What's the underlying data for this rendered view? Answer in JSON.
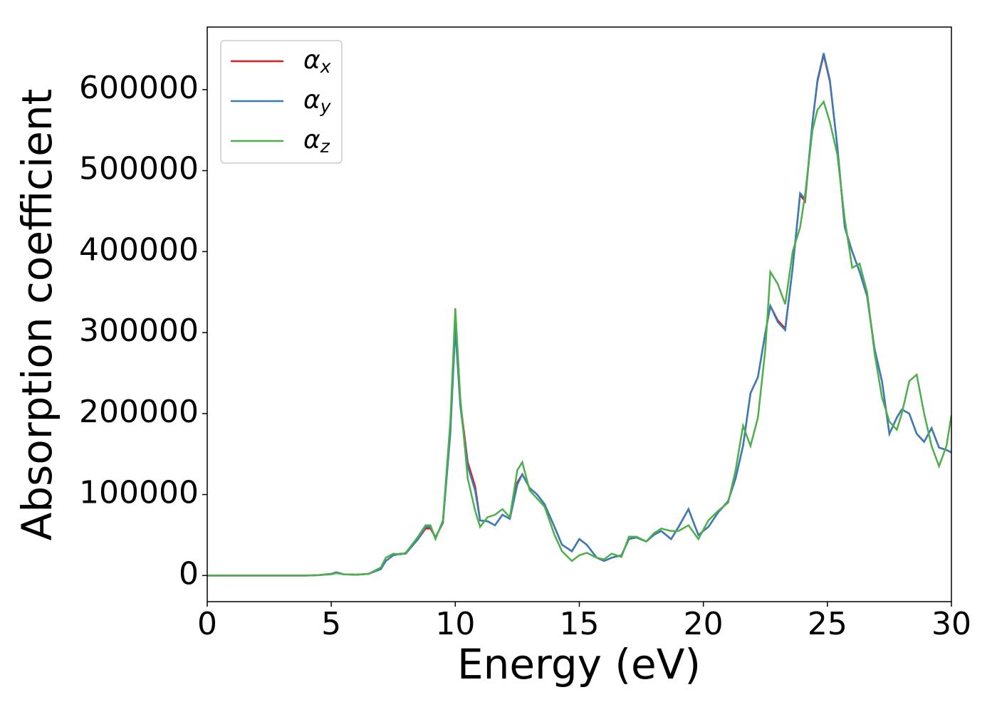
{
  "chart_data": {
    "type": "line",
    "xlabel": "Energy (eV)",
    "ylabel": "Absorption coefficient",
    "x": [
      0,
      1,
      2,
      3,
      4,
      4.5,
      5,
      5.2,
      5.5,
      6,
      6.5,
      7,
      7.2,
      7.5,
      7.8,
      8,
      8.5,
      8.8,
      9,
      9.2,
      9.5,
      9.8,
      10,
      10.2,
      10.5,
      10.8,
      11,
      11.3,
      11.6,
      11.9,
      12.2,
      12.5,
      12.7,
      13,
      13.3,
      13.6,
      14,
      14.3,
      14.7,
      15,
      15.3,
      15.7,
      16,
      16.3,
      16.7,
      17,
      17.3,
      17.7,
      18,
      18.3,
      18.7,
      19,
      19.4,
      19.8,
      20.2,
      20.6,
      21,
      21.3,
      21.6,
      21.9,
      22.2,
      22.5,
      22.7,
      23,
      23.3,
      23.6,
      23.9,
      24.1,
      24.4,
      24.6,
      24.85,
      25.1,
      25.4,
      25.7,
      26,
      26.3,
      26.6,
      26.9,
      27.2,
      27.5,
      27.8,
      28,
      28.3,
      28.6,
      28.9,
      29.2,
      29.5,
      29.8,
      30
    ],
    "series": [
      {
        "name": "αx",
        "color": "#e41a1c",
        "values": [
          0,
          0,
          0,
          0,
          0,
          500,
          2000,
          4000,
          1500,
          1000,
          2000,
          8000,
          18000,
          25000,
          27000,
          27000,
          45000,
          58000,
          58000,
          47000,
          65000,
          180000,
          320000,
          215000,
          140000,
          110000,
          68000,
          67000,
          62000,
          75000,
          70000,
          115000,
          125000,
          108000,
          100000,
          88000,
          60000,
          38000,
          30000,
          45000,
          38000,
          22000,
          18000,
          22000,
          25000,
          45000,
          47000,
          42000,
          50000,
          55000,
          45000,
          60000,
          82000,
          50000,
          60000,
          78000,
          92000,
          120000,
          160000,
          225000,
          245000,
          300000,
          333000,
          315000,
          305000,
          380000,
          470000,
          462000,
          560000,
          610000,
          643000,
          610000,
          530000,
          430000,
          400000,
          375000,
          345000,
          280000,
          240000,
          175000,
          195000,
          205000,
          200000,
          175000,
          165000,
          182000,
          158000,
          155000,
          152000
        ]
      },
      {
        "name": "αy",
        "color": "#377eb8",
        "values": [
          0,
          0,
          0,
          0,
          0,
          500,
          2000,
          4000,
          1500,
          1000,
          2000,
          8000,
          18000,
          25000,
          27000,
          27000,
          45000,
          60000,
          60000,
          47000,
          65000,
          175000,
          305000,
          210000,
          135000,
          105000,
          68000,
          67000,
          62000,
          75000,
          70000,
          112000,
          125000,
          108000,
          100000,
          88000,
          60000,
          38000,
          30000,
          45000,
          38000,
          22000,
          18000,
          22000,
          25000,
          45000,
          47000,
          42000,
          50000,
          55000,
          45000,
          60000,
          82000,
          50000,
          60000,
          78000,
          92000,
          120000,
          160000,
          225000,
          245000,
          300000,
          333000,
          313000,
          303000,
          380000,
          472000,
          465000,
          560000,
          612000,
          645000,
          612000,
          530000,
          430000,
          400000,
          375000,
          345000,
          280000,
          240000,
          175000,
          195000,
          205000,
          200000,
          175000,
          165000,
          182000,
          158000,
          155000,
          152000
        ]
      },
      {
        "name": "αz",
        "color": "#4daf4a",
        "values": [
          0,
          0,
          0,
          0,
          0,
          500,
          1500,
          3000,
          1500,
          1000,
          2000,
          10000,
          22000,
          27000,
          26000,
          28000,
          48000,
          62000,
          62000,
          45000,
          68000,
          190000,
          330000,
          220000,
          120000,
          80000,
          60000,
          72000,
          75000,
          82000,
          72000,
          130000,
          140000,
          105000,
          95000,
          85000,
          50000,
          30000,
          18000,
          25000,
          28000,
          22000,
          20000,
          27000,
          23000,
          48000,
          48000,
          42000,
          52000,
          58000,
          55000,
          55000,
          62000,
          45000,
          68000,
          80000,
          90000,
          130000,
          185000,
          160000,
          195000,
          280000,
          375000,
          360000,
          335000,
          400000,
          430000,
          470000,
          550000,
          575000,
          585000,
          560000,
          520000,
          440000,
          380000,
          385000,
          350000,
          275000,
          220000,
          190000,
          180000,
          200000,
          240000,
          248000,
          200000,
          160000,
          135000,
          160000,
          198000
        ]
      }
    ],
    "xlim": [
      0,
      30
    ],
    "xticks": [
      0,
      5,
      10,
      15,
      20,
      25,
      30
    ],
    "ylim": [
      -32250,
      677250
    ],
    "yticks": [
      0,
      100000,
      200000,
      300000,
      400000,
      500000,
      600000
    ],
    "legend": "upper left"
  }
}
